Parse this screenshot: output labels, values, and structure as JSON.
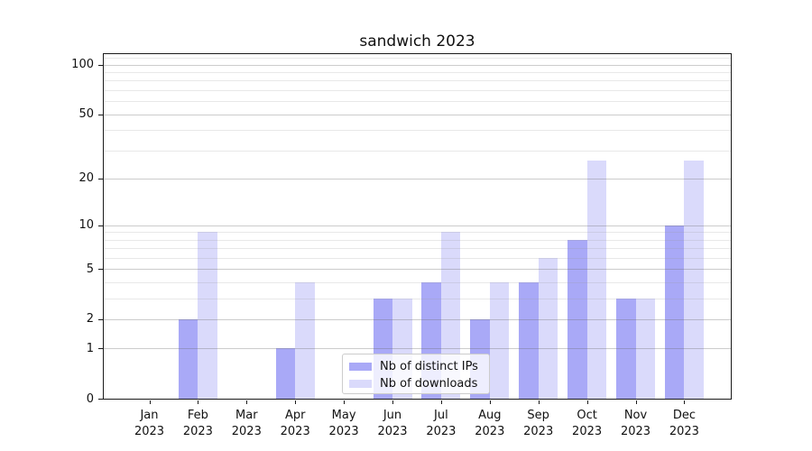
{
  "chart_data": {
    "type": "bar",
    "title": "sandwich 2023",
    "categories": [
      "Jan",
      "Feb",
      "Mar",
      "Apr",
      "May",
      "Jun",
      "Jul",
      "Aug",
      "Sep",
      "Oct",
      "Nov",
      "Dec"
    ],
    "category_year": "2023",
    "series": [
      {
        "name": "Nb of distinct IPs",
        "color": "#a9a9f7",
        "values": [
          0,
          2,
          0,
          1,
          0,
          3,
          4,
          2,
          4,
          8,
          3,
          10
        ]
      },
      {
        "name": "Nb of downloads",
        "color": "#dadafb",
        "values": [
          0,
          9,
          0,
          4,
          0,
          3,
          9,
          4,
          6,
          26,
          3,
          26
        ]
      }
    ],
    "y_axis": {
      "scale": "log1p",
      "major_ticks": [
        0,
        1,
        2,
        5,
        10,
        20,
        50,
        100
      ],
      "minor_gridlines": [
        3,
        4,
        6,
        7,
        8,
        9,
        30,
        40,
        60,
        70,
        80,
        90,
        110
      ],
      "ylim": [
        0,
        116
      ]
    },
    "xlabel": "",
    "ylabel": "",
    "grid": true,
    "legend": {
      "position": "bottom-center"
    }
  }
}
